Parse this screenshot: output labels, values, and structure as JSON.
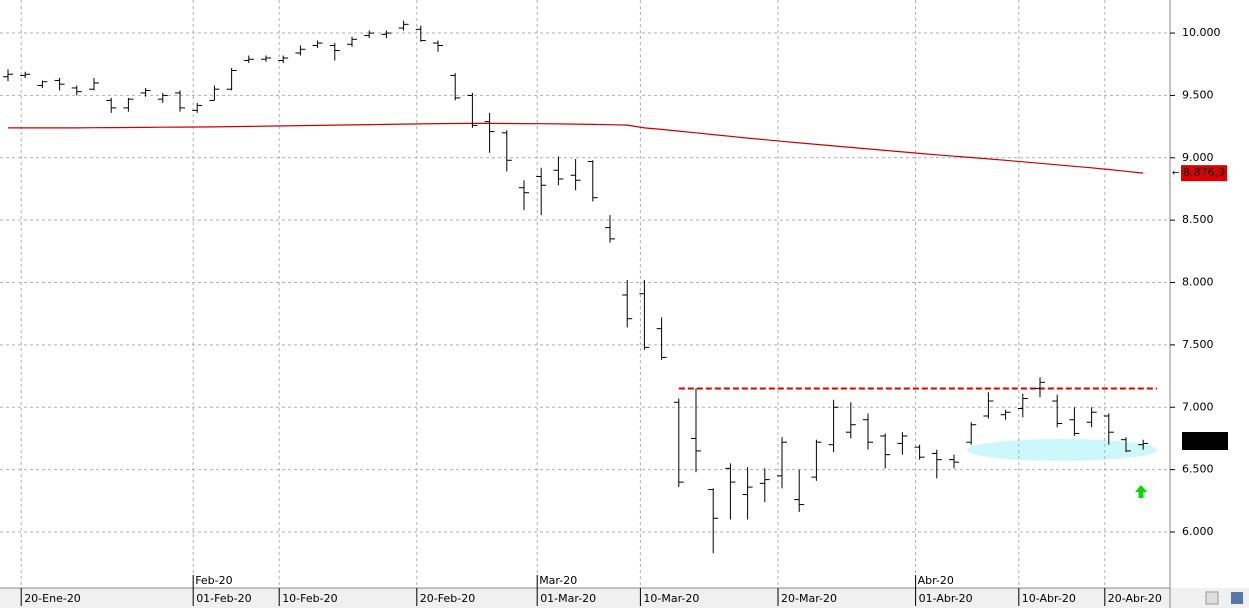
{
  "chart_data": {
    "type": "ohlc",
    "categories": [
      null,
      "20-Ene-20",
      null,
      null,
      null,
      null,
      null,
      null,
      null,
      null,
      null,
      "01-Feb-20",
      null,
      null,
      null,
      null,
      "10-Feb-20",
      null,
      null,
      null,
      null,
      null,
      null,
      null,
      "20-Feb-20",
      null,
      null,
      null,
      null,
      null,
      null,
      "01-Mar-20",
      null,
      null,
      null,
      null,
      null,
      "10-Mar-20",
      null,
      null,
      null,
      null,
      null,
      null,
      null,
      "20-Mar-20",
      null,
      null,
      null,
      null,
      null,
      null,
      null,
      "01-Abr-20",
      null,
      null,
      null,
      null,
      null,
      "10-Abr-20",
      null,
      null,
      null,
      null,
      "20-Abr-20",
      null,
      null
    ],
    "period_labels": [
      null,
      null,
      null,
      null,
      null,
      null,
      null,
      null,
      null,
      null,
      null,
      "Feb-20",
      null,
      null,
      null,
      null,
      null,
      null,
      null,
      null,
      null,
      null,
      null,
      null,
      null,
      null,
      null,
      null,
      null,
      null,
      null,
      "Mar-20",
      null,
      null,
      null,
      null,
      null,
      null,
      null,
      null,
      null,
      null,
      null,
      null,
      null,
      null,
      null,
      null,
      null,
      null,
      null,
      null,
      null,
      "Abr-20",
      null,
      null,
      null,
      null,
      null,
      null,
      null,
      null,
      null,
      null,
      null,
      null,
      null
    ],
    "open": [
      9650,
      9660,
      9580,
      9620,
      9560,
      9550,
      9460,
      9400,
      9520,
      9470,
      9520,
      9380,
      9460,
      9550,
      9780,
      9790,
      9780,
      9840,
      9900,
      9900,
      9910,
      9980,
      9990,
      10040,
      10030,
      9920,
      9660,
      9500,
      9290,
      9200,
      8760,
      8850,
      8900,
      8860,
      8970,
      8440,
      7900,
      7910,
      7630,
      7040,
      6750,
      6340,
      6510,
      6300,
      6390,
      6450,
      6260,
      6440,
      6700,
      6800,
      6900,
      6770,
      6710,
      6680,
      6630,
      6580,
      6720,
      6930,
      6940,
      6990,
      7150,
      7050,
      6900,
      6880,
      6930,
      6740,
      6700
    ],
    "high": [
      9710,
      9690,
      9620,
      9640,
      9580,
      9640,
      9480,
      9480,
      9560,
      9520,
      9540,
      9440,
      9580,
      9720,
      9820,
      9820,
      9820,
      9900,
      9940,
      9920,
      9970,
      10020,
      10020,
      10100,
      10060,
      9940,
      9680,
      9520,
      9360,
      9220,
      8820,
      8920,
      9010,
      8990,
      8980,
      8540,
      8020,
      8020,
      7720,
      7070,
      7150,
      6350,
      6550,
      6520,
      6510,
      6760,
      6500,
      6740,
      7060,
      7040,
      6950,
      6790,
      6800,
      6700,
      6660,
      6620,
      6880,
      7120,
      6980,
      7110,
      7240,
      7100,
      7000,
      7000,
      6950,
      6760,
      6740
    ],
    "low": [
      9615,
      9640,
      9560,
      9540,
      9500,
      9540,
      9360,
      9370,
      9490,
      9440,
      9370,
      9360,
      9460,
      9540,
      9760,
      9770,
      9760,
      9820,
      9880,
      9780,
      9890,
      9960,
      9960,
      10020,
      9930,
      9850,
      9460,
      9240,
      9040,
      8890,
      8580,
      8540,
      8780,
      8740,
      8650,
      8320,
      7640,
      7460,
      7380,
      6360,
      6480,
      5830,
      6100,
      6100,
      6240,
      6350,
      6160,
      6410,
      6640,
      6750,
      6660,
      6510,
      6620,
      6580,
      6430,
      6510,
      6700,
      6910,
      6900,
      6920,
      7080,
      6840,
      6770,
      6840,
      6700,
      6640,
      6660
    ],
    "close": [
      9670,
      9670,
      9610,
      9590,
      9530,
      9600,
      9400,
      9470,
      9540,
      9500,
      9400,
      9420,
      9550,
      9700,
      9790,
      9800,
      9800,
      9870,
      9920,
      9860,
      9950,
      10000,
      10000,
      10070,
      9940,
      9900,
      9480,
      9260,
      9210,
      8980,
      8720,
      8780,
      8830,
      8820,
      8680,
      8350,
      7710,
      7480,
      7400,
      6400,
      6650,
      6110,
      6400,
      6360,
      6420,
      6720,
      6220,
      6720,
      7000,
      6860,
      6720,
      6620,
      6770,
      6600,
      6580,
      6560,
      6860,
      7050,
      6960,
      7070,
      7200,
      6870,
      6790,
      6960,
      6800,
      6650,
      6710
    ],
    "color": "#000000",
    "moving_average": {
      "color": "#cc0000",
      "values": [
        9240,
        9240,
        9240,
        9240,
        9240,
        9241,
        9242,
        9243,
        9244,
        9245,
        9246,
        9247,
        9248,
        9250,
        9252,
        9254,
        9256,
        9258,
        9260,
        9262,
        9264,
        9266,
        9268,
        9270,
        9272,
        9274,
        9275,
        9276,
        9276,
        9275,
        9274,
        9273,
        9272,
        9270,
        9268,
        9265,
        9262,
        9240,
        9228,
        9214,
        9200,
        9186,
        9172,
        9158,
        9145,
        9132,
        9119,
        9107,
        9095,
        9083,
        9071,
        9059,
        9047,
        9035,
        9024,
        9013,
        9002,
        8991,
        8980,
        8968,
        8956,
        8944,
        8932,
        8920,
        8906,
        8892,
        8876.9
      ],
      "last_label": "8.876,9"
    },
    "resistance": {
      "value": 7150,
      "color": "#dd0000"
    },
    "ylim": [
      5551,
      10265
    ],
    "yticks": [
      {
        "value": 6000,
        "label": "6.000"
      },
      {
        "value": 6500,
        "label": "6.500"
      },
      {
        "value": 7000,
        "label": "7.000"
      },
      {
        "value": 7500,
        "label": "7.500"
      },
      {
        "value": 8000,
        "label": "8.000"
      },
      {
        "value": 8500,
        "label": "8.500"
      },
      {
        "value": 9000,
        "label": "9.000"
      },
      {
        "value": 9500,
        "label": "9.500"
      },
      {
        "value": 10000,
        "label": "10.000"
      }
    ],
    "grid": true
  }
}
